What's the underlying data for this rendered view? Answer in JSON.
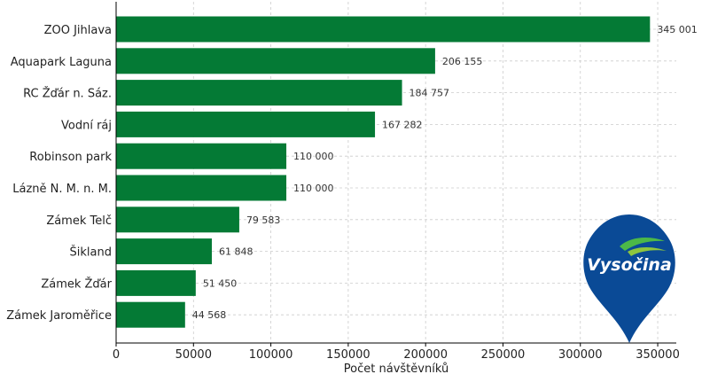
{
  "chart_data": {
    "type": "bar",
    "orientation": "horizontal",
    "categories": [
      "ZOO Jihlava",
      "Aquapark Laguna",
      "RC Žďár n. Sáz.",
      "Vodní ráj",
      "Robinson park",
      "Lázně N. M. n. M.",
      "Zámek Telč",
      "Šikland",
      "Zámek Žďár",
      "Zámek Jaroměřice"
    ],
    "values": [
      345001,
      206155,
      184757,
      167282,
      110000,
      110000,
      79583,
      61848,
      51450,
      44568
    ],
    "value_labels": [
      "345 001",
      "206 155",
      "184 757",
      "167 282",
      "110 000",
      "110 000",
      "79 583",
      "61 848",
      "51 450",
      "44 568"
    ],
    "xlabel": "Počet návštěvníků",
    "ylabel": "",
    "xlim": [
      0,
      362000
    ],
    "xticks": [
      0,
      50000,
      100000,
      150000,
      200000,
      250000,
      300000,
      350000
    ],
    "xtick_labels": [
      "0",
      "50000",
      "100000",
      "150000",
      "200000",
      "250000",
      "300000",
      "350000"
    ],
    "grid": true,
    "bar_color": "#047a35"
  },
  "logo": {
    "text": "Vysočina",
    "pin_color": "#0a4a96",
    "leaf_color": "#4cb848"
  }
}
